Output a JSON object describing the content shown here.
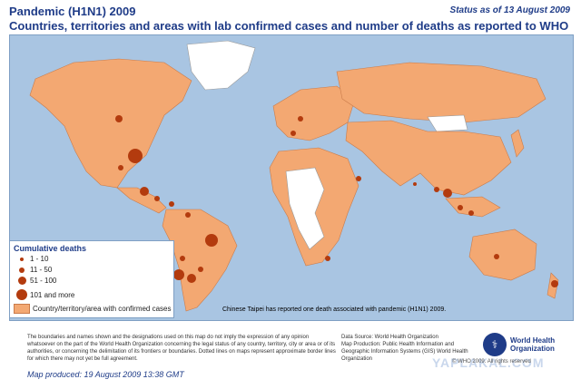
{
  "header": {
    "title_line1": "Pandemic (H1N1) 2009",
    "title_line2": "Countries, territories and areas with lab confirmed cases and number of deaths as reported to WHO",
    "status": "Status as of 13 August 2009"
  },
  "legend": {
    "title": "Cumulative deaths",
    "items": [
      {
        "label": "1 - 10"
      },
      {
        "label": "11 - 50"
      },
      {
        "label": "51 - 100"
      },
      {
        "label": "101 and more"
      },
      {
        "label": "Country/territory/area with confirmed cases"
      }
    ]
  },
  "notes": {
    "taipei": "Chinese Taipei has reported one death associated with pandemic (H1N1) 2009."
  },
  "footer": {
    "disclaimer": "The boundaries and names shown and the designations used on this map do not imply the expression of any opinion whatsoever on the part of the World Health Organization concerning the legal status of any country, territory, city or area or of its authorities, or concerning the delimitation of its frontiers or boundaries. Dotted lines on maps represent approximate border lines for which there may not yet be full agreement.",
    "map_produced": "Map produced: 19 August 2009 13:38 GMT",
    "data_source": "Data Source: World Health Organization",
    "map_production": "Map Production: Public Health Information and Geographic Information Systems (GIS) World Health Organization",
    "who_name_line1": "World Health",
    "who_name_line2": "Organization",
    "copyright": "© WHO 2009. All rights reserved",
    "watermark": "YAPLAKAL.COM"
  },
  "colors": {
    "ocean": "#a9c5e2",
    "confirmed": "#f3a872",
    "no_cases": "#ffffff",
    "death_dot": "#b33b0e",
    "title": "#1f3c88"
  }
}
